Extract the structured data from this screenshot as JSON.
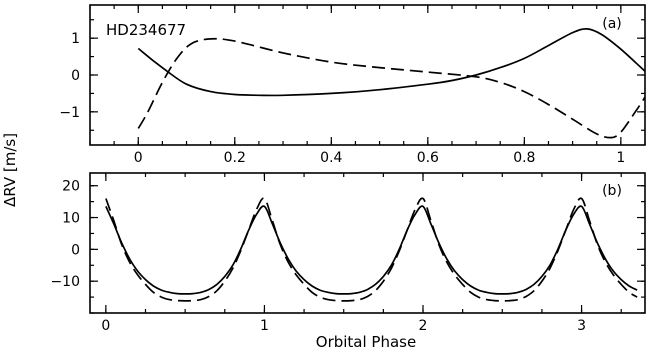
{
  "ylabel": "ΔRV [m/s]",
  "xlabel": "Orbital Phase",
  "chart_data": [
    {
      "type": "line",
      "panel_label": "(a)",
      "annotation": "HD234677",
      "xlim": [
        -0.1,
        1.05
      ],
      "ylim": [
        -1.9,
        1.9
      ],
      "xticks": [
        0,
        0.2,
        0.4,
        0.6,
        0.8,
        1
      ],
      "xtick_labels": [
        "0",
        "0.2",
        "0.4",
        "0.6",
        "0.8",
        "1"
      ],
      "yticks": [
        -1,
        0,
        1
      ],
      "ytick_labels": [
        "−1",
        "0",
        "1"
      ],
      "series": [
        {
          "style": "solid",
          "x": [
            0,
            0.03,
            0.06,
            0.1,
            0.15,
            0.2,
            0.25,
            0.3,
            0.4,
            0.5,
            0.6,
            0.65,
            0.7,
            0.75,
            0.8,
            0.85,
            0.9,
            0.93,
            0.96,
            1.0,
            1.05
          ],
          "y": [
            0.72,
            0.4,
            0.1,
            -0.25,
            -0.45,
            -0.53,
            -0.55,
            -0.55,
            -0.5,
            -0.4,
            -0.25,
            -0.15,
            0.0,
            0.2,
            0.45,
            0.8,
            1.15,
            1.25,
            1.1,
            0.7,
            0.1
          ]
        },
        {
          "style": "dashed",
          "x": [
            0,
            0.02,
            0.05,
            0.08,
            0.11,
            0.15,
            0.2,
            0.3,
            0.4,
            0.5,
            0.6,
            0.7,
            0.75,
            0.8,
            0.85,
            0.9,
            0.95,
            0.98,
            1.0,
            1.03,
            1.05
          ],
          "y": [
            -1.45,
            -1.0,
            -0.2,
            0.45,
            0.85,
            0.98,
            0.92,
            0.6,
            0.35,
            0.2,
            0.08,
            -0.05,
            -0.2,
            -0.45,
            -0.8,
            -1.2,
            -1.6,
            -1.7,
            -1.55,
            -1.0,
            -0.6
          ]
        }
      ]
    },
    {
      "type": "line",
      "panel_label": "(b)",
      "xlim": [
        -0.1,
        3.4
      ],
      "ylim": [
        -20,
        24
      ],
      "xticks": [
        0,
        1,
        2,
        3
      ],
      "xtick_labels": [
        "0",
        "1",
        "2",
        "3"
      ],
      "yticks": [
        -10,
        0,
        10,
        20
      ],
      "ytick_labels": [
        "−10",
        "0",
        "10",
        "20"
      ],
      "series": [
        {
          "style": "solid",
          "period": 1,
          "phase_x": [
            0,
            0.05,
            0.1,
            0.15,
            0.2,
            0.25,
            0.3,
            0.35,
            0.4,
            0.45,
            0.5,
            0.55,
            0.6,
            0.65,
            0.7,
            0.75,
            0.8,
            0.85,
            0.9,
            0.95,
            1.0
          ],
          "phase_y": [
            13.5,
            8.0,
            2.0,
            -3.0,
            -6.8,
            -9.5,
            -11.5,
            -12.8,
            -13.5,
            -13.9,
            -14.0,
            -13.9,
            -13.5,
            -12.6,
            -11.0,
            -8.5,
            -5.0,
            0.0,
            6.0,
            11.0,
            13.5
          ],
          "x_range": [
            0,
            3.35
          ]
        },
        {
          "style": "dashed",
          "period": 1,
          "phase_x": [
            0,
            0.05,
            0.1,
            0.15,
            0.2,
            0.25,
            0.3,
            0.35,
            0.4,
            0.45,
            0.5,
            0.55,
            0.6,
            0.65,
            0.7,
            0.75,
            0.8,
            0.85,
            0.9,
            0.95,
            1.0
          ],
          "phase_y": [
            16.0,
            9.0,
            1.5,
            -4.0,
            -8.0,
            -11.0,
            -13.5,
            -15.0,
            -15.8,
            -16.1,
            -16.2,
            -16.1,
            -15.8,
            -14.8,
            -13.0,
            -10.0,
            -6.0,
            -0.5,
            6.0,
            12.5,
            16.0
          ],
          "x_range": [
            0,
            3.35
          ]
        }
      ]
    }
  ]
}
